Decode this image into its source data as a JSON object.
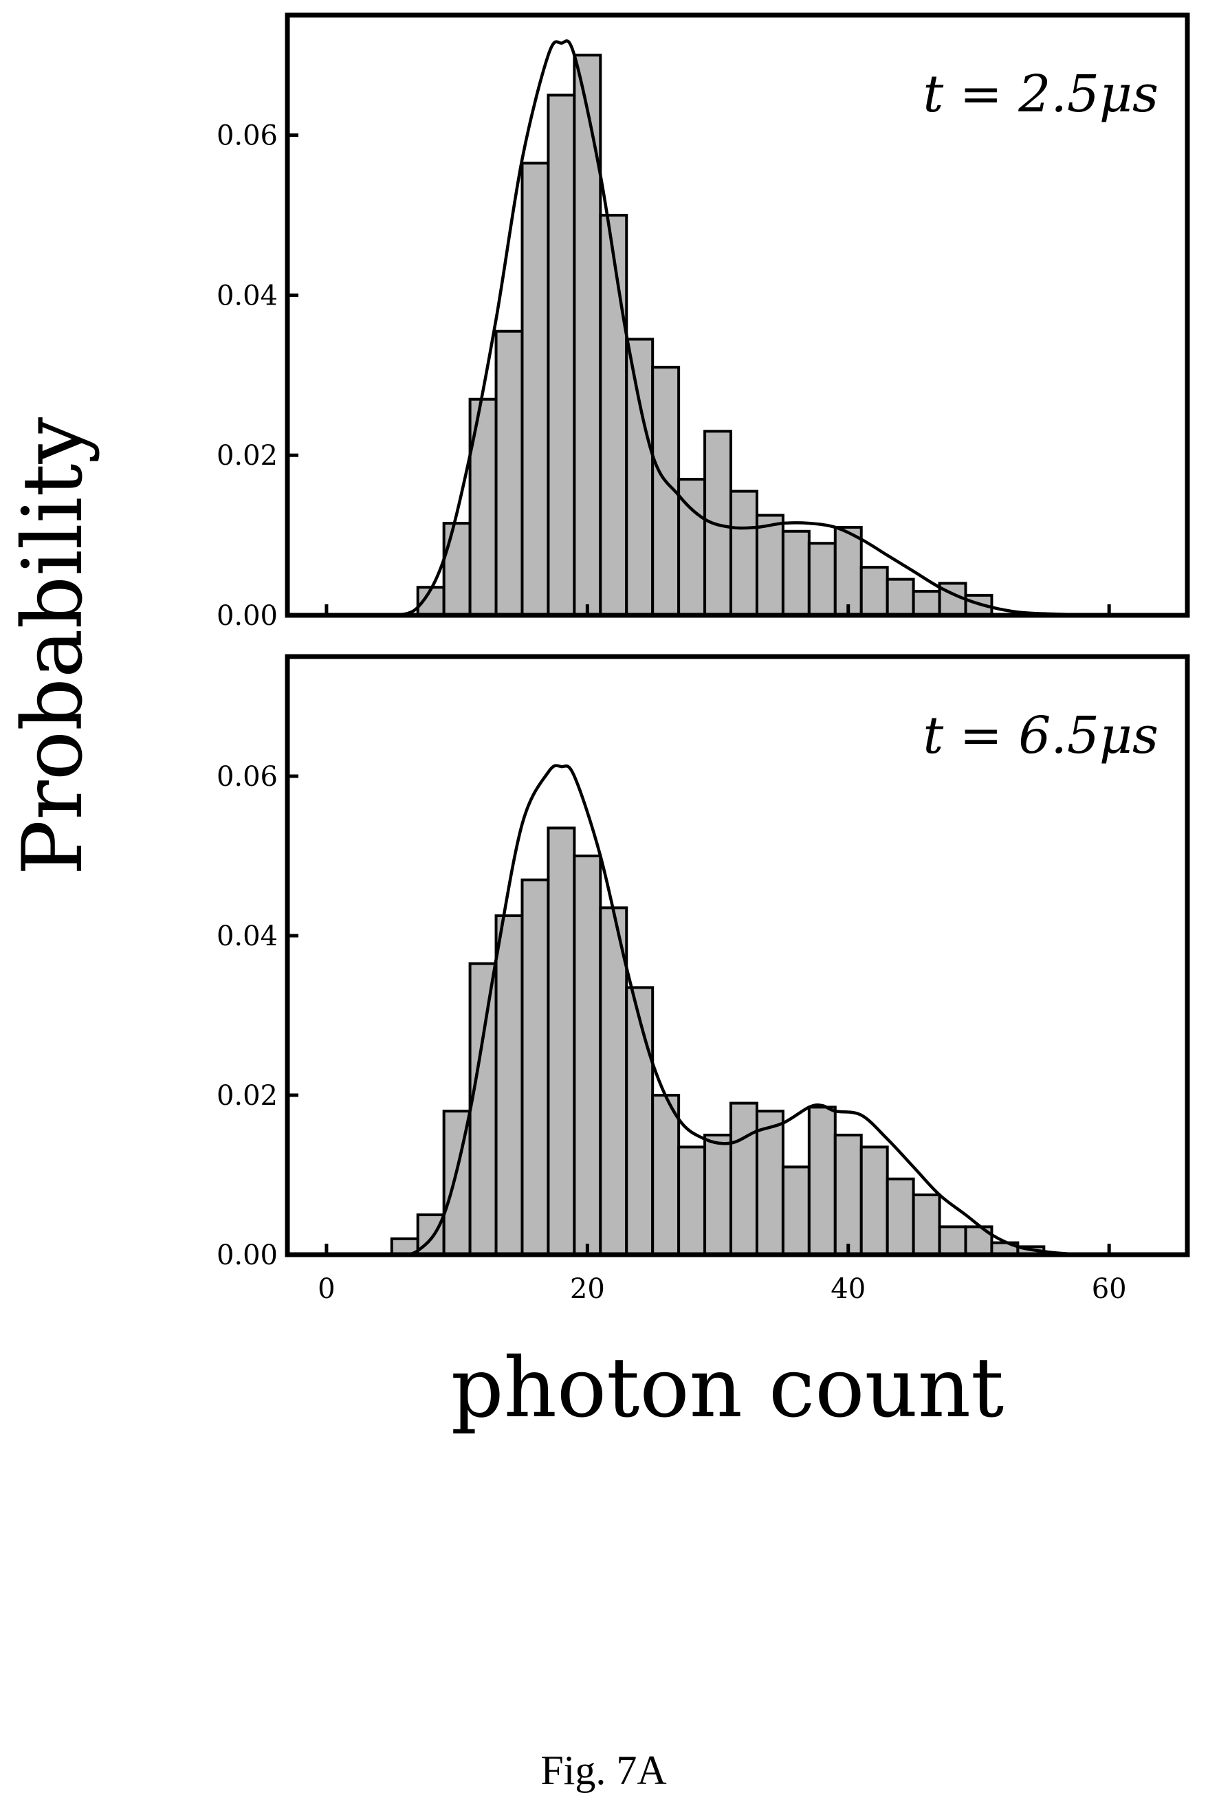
{
  "figure": {
    "caption": "Fig. 7A"
  },
  "chart_data": {
    "type": "bar",
    "xlabel": "photon count",
    "ylabel": "Probability",
    "xlim": [
      -3,
      66
    ],
    "ylim": [
      0,
      0.075
    ],
    "grid": false,
    "x_ticks": [
      0,
      20,
      40,
      60
    ],
    "y_ticks": [
      0.0,
      0.02,
      0.04,
      0.06
    ],
    "y_tick_labels": [
      "0.00",
      "0.02",
      "0.04",
      "0.06"
    ],
    "x_tick_labels": [
      "0",
      "20",
      "40",
      "60"
    ],
    "bin_width": 2,
    "panels": [
      {
        "annotation": "t = 2.5μs",
        "bin_starts": [
          7,
          9,
          11,
          13,
          15,
          17,
          19,
          21,
          23,
          25,
          27,
          29,
          31,
          33,
          35,
          37,
          39,
          41,
          43,
          45,
          47,
          49
        ],
        "values": [
          0.0035,
          0.0115,
          0.027,
          0.0355,
          0.0565,
          0.065,
          0.07,
          0.05,
          0.0345,
          0.031,
          0.017,
          0.023,
          0.0155,
          0.0125,
          0.0105,
          0.009,
          0.011,
          0.006,
          0.0045,
          0.003,
          0.004,
          0.0025
        ],
        "fit_curve": {
          "x": [
            5,
            7,
            9,
            11,
            13,
            15,
            17,
            18,
            19,
            21,
            23,
            25,
            27,
            29,
            31,
            33,
            35,
            37,
            39,
            41,
            43,
            45,
            47,
            49,
            51,
            53,
            55,
            57,
            59
          ],
          "y": [
            0.0,
            0.001,
            0.007,
            0.02,
            0.037,
            0.057,
            0.07,
            0.0715,
            0.07,
            0.055,
            0.035,
            0.02,
            0.015,
            0.012,
            0.011,
            0.011,
            0.0115,
            0.0115,
            0.011,
            0.0095,
            0.0075,
            0.0055,
            0.0035,
            0.002,
            0.001,
            0.0004,
            0.0002,
            0.0001,
            0.0
          ]
        }
      },
      {
        "annotation": "t = 6.5μs",
        "bin_starts": [
          5,
          7,
          9,
          11,
          13,
          15,
          17,
          19,
          21,
          23,
          25,
          27,
          29,
          31,
          33,
          35,
          37,
          39,
          41,
          43,
          45,
          47,
          49,
          51,
          53
        ],
        "values": [
          0.002,
          0.005,
          0.018,
          0.0365,
          0.0425,
          0.047,
          0.0535,
          0.05,
          0.0435,
          0.0335,
          0.02,
          0.0135,
          0.015,
          0.019,
          0.018,
          0.011,
          0.0185,
          0.015,
          0.0135,
          0.0095,
          0.0075,
          0.0035,
          0.0035,
          0.0015,
          0.001
        ],
        "fit_curve": {
          "x": [
            5,
            7,
            9,
            11,
            13,
            15,
            17,
            18,
            19,
            21,
            23,
            25,
            27,
            29,
            31,
            33,
            35,
            37,
            38,
            39,
            41,
            43,
            45,
            47,
            49,
            51,
            53,
            55,
            57,
            59
          ],
          "y": [
            0.0,
            0.0005,
            0.005,
            0.018,
            0.037,
            0.054,
            0.0605,
            0.0612,
            0.06,
            0.05,
            0.036,
            0.024,
            0.017,
            0.0145,
            0.014,
            0.0155,
            0.0165,
            0.0185,
            0.0187,
            0.018,
            0.0175,
            0.0145,
            0.011,
            0.0075,
            0.005,
            0.0025,
            0.001,
            0.0004,
            0.0001,
            0.0
          ]
        }
      }
    ]
  }
}
